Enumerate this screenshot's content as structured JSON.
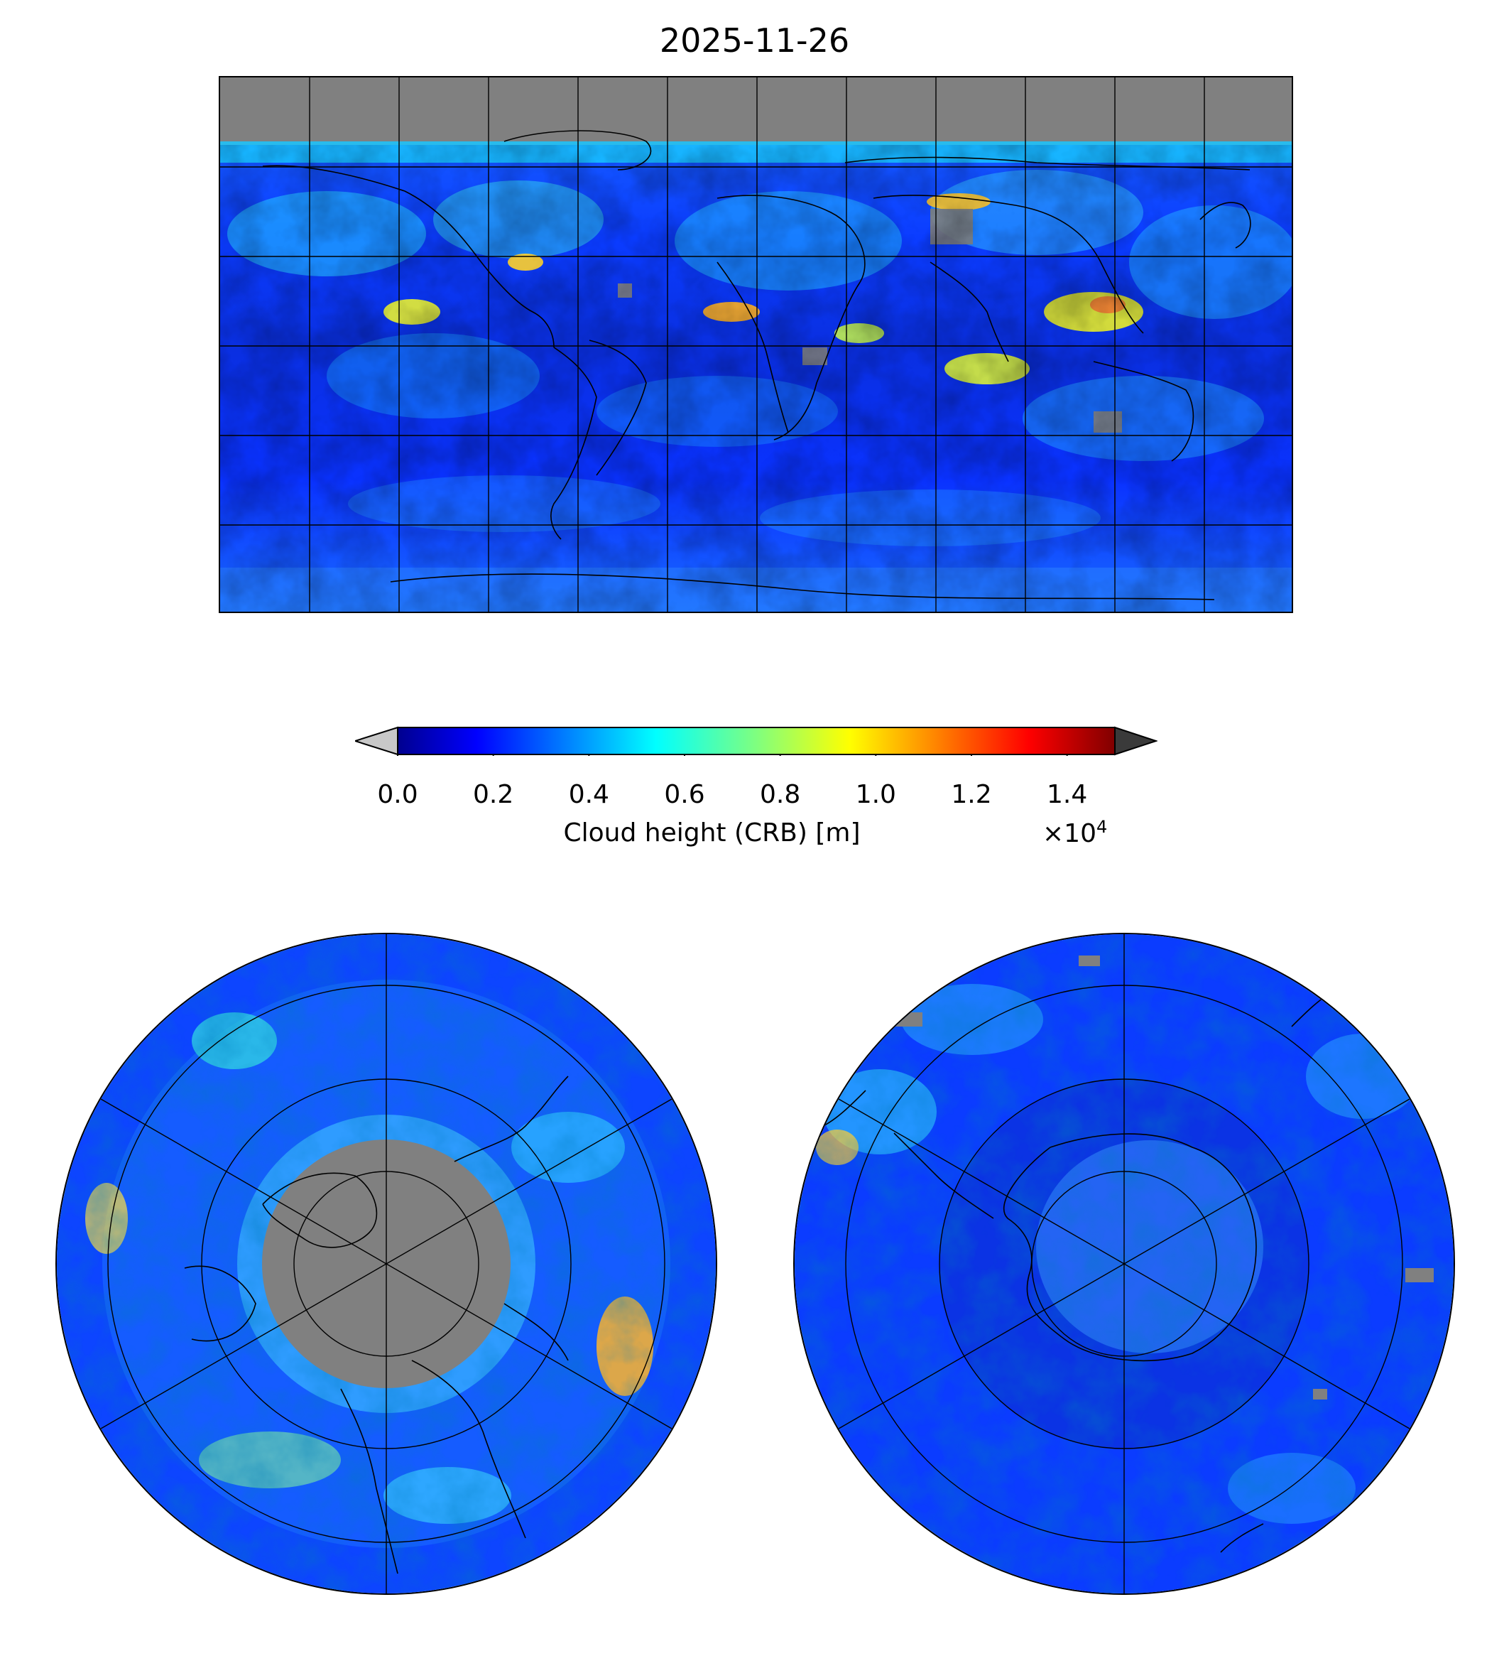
{
  "title": "2025-11-26",
  "colorbar": {
    "label": "Cloud height (CRB) [m]",
    "exponent_prefix": "×10",
    "exponent_power": "4",
    "ticks": [
      "0.0",
      "0.2",
      "0.4",
      "0.6",
      "0.8",
      "1.0",
      "1.2",
      "1.4"
    ],
    "tick_values": [
      0.0,
      0.2,
      0.4,
      0.6,
      0.8,
      1.0,
      1.2,
      1.4
    ],
    "range": [
      0.0,
      1.5
    ],
    "colormap": "jet",
    "extend_under_color": "#c8c8c8",
    "extend_over_color": "#3a3a3a"
  },
  "colors": {
    "missing_data": "#808080",
    "coastline": "#000000",
    "gridline": "#000000"
  },
  "panels": [
    {
      "projection": "plate-carree",
      "region": "global"
    },
    {
      "projection": "north-polar-stereographic",
      "region": "arctic"
    },
    {
      "projection": "south-polar-stereographic",
      "region": "antarctic"
    }
  ]
}
